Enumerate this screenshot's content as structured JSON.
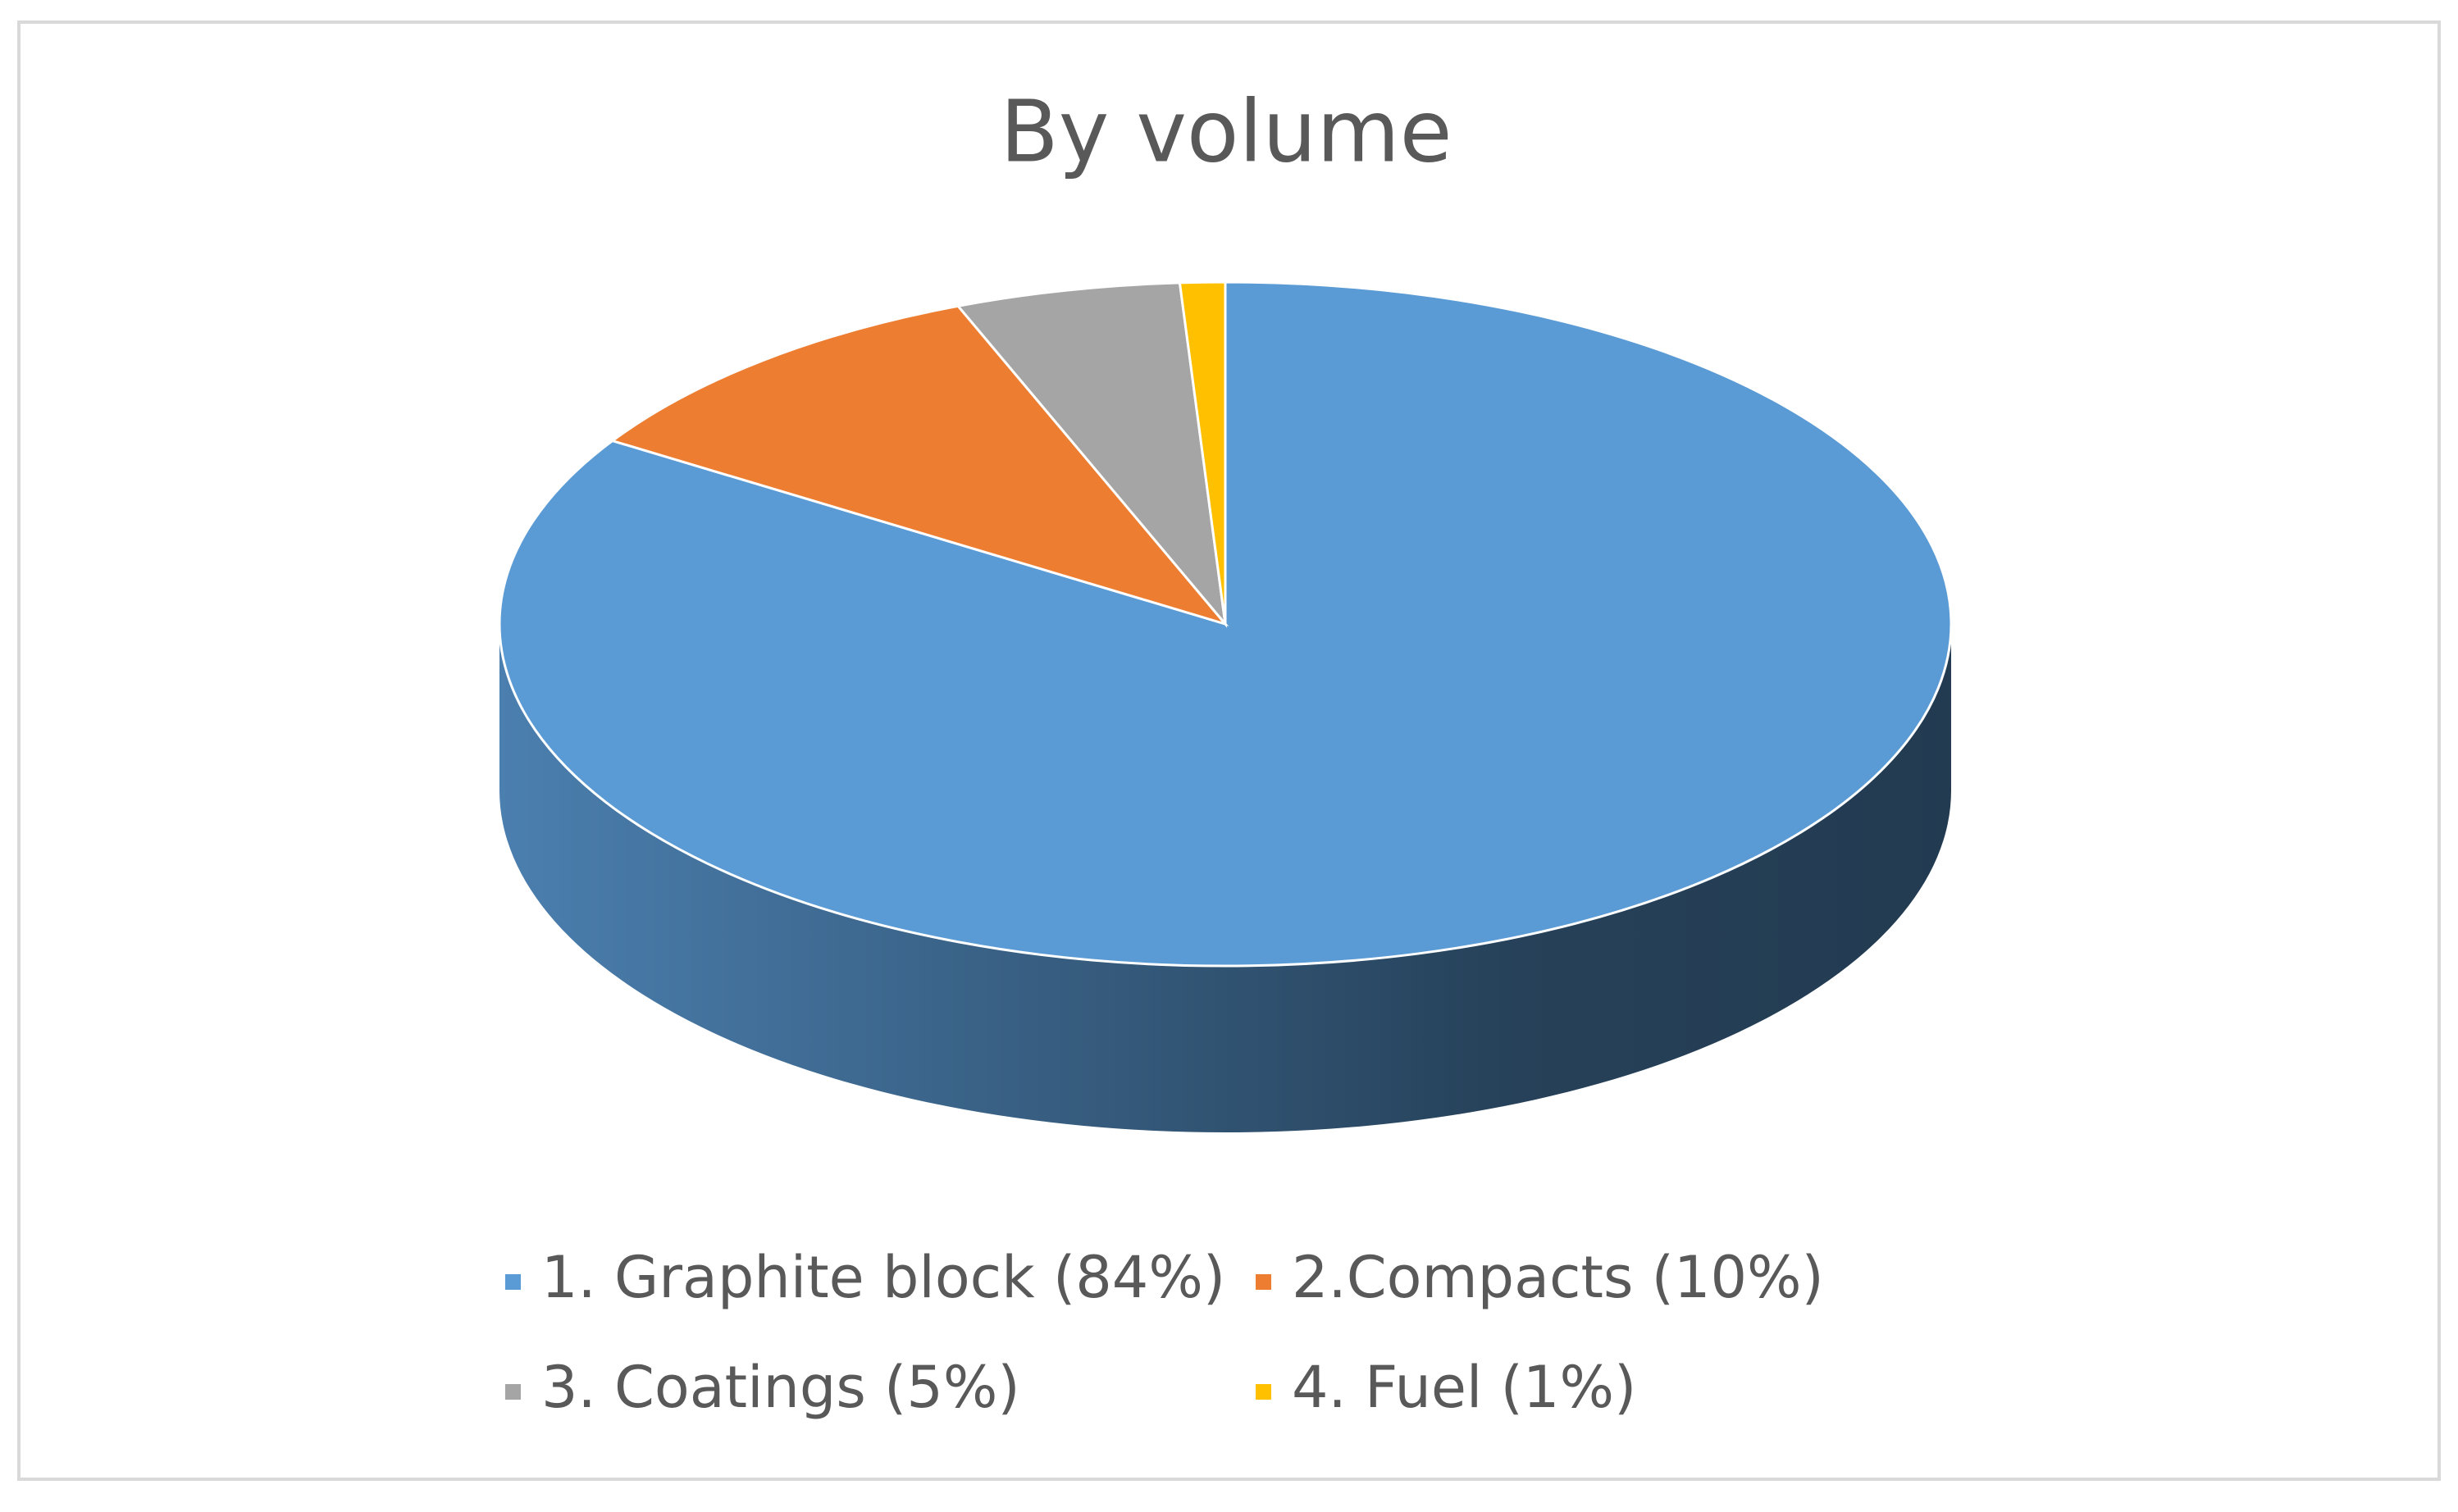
{
  "chart_data": {
    "type": "pie3d",
    "title": "By volume",
    "categories": [
      "1. Graphite block (84%)",
      "2.Compacts (10%)",
      "3. Coatings (5%)",
      "4. Fuel (1%)"
    ],
    "values": [
      84,
      10,
      5,
      1
    ],
    "colors": [
      "#5b9bd5",
      "#ed7d31",
      "#a5a5a5",
      "#ffc000"
    ],
    "legend": "bottom"
  }
}
